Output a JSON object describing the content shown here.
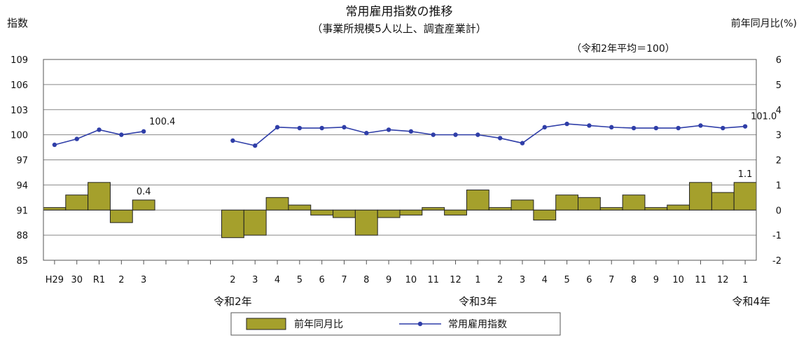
{
  "chart_data": {
    "type": "bar+line",
    "title": "常用雇用指数の推移",
    "subtitle": "（事業所規模5人以上、調査産業計）",
    "base_note": "（令和2年平均＝100）",
    "left_axis_label": "指数",
    "right_axis_label": "前年同月比(%)",
    "left_ylim": [
      85,
      109
    ],
    "left_ticks": [
      "109",
      "106",
      "103",
      "100",
      "97",
      "94",
      "91",
      "88",
      "85"
    ],
    "right_ylim": [
      -2,
      6
    ],
    "right_ticks": [
      "6",
      "5",
      "4",
      "3",
      "2",
      "1",
      "0",
      "-1",
      "-2"
    ],
    "categories": [
      "H29",
      "30",
      "R1",
      "2",
      "3",
      "",
      "",
      "",
      "2",
      "3",
      "4",
      "5",
      "6",
      "7",
      "8",
      "9",
      "10",
      "11",
      "12",
      "1",
      "2",
      "3",
      "4",
      "5",
      "6",
      "7",
      "8",
      "9",
      "10",
      "11",
      "12",
      "1"
    ],
    "era_labels": [
      {
        "text": "令和2年",
        "index": 8
      },
      {
        "text": "令和3年",
        "index": 19
      },
      {
        "text": "令和4年",
        "index": 31
      }
    ],
    "series": [
      {
        "name": "前年同月比",
        "kind": "bar",
        "color": "#a5a02c",
        "values": [
          0.1,
          0.6,
          1.1,
          -0.5,
          0.4,
          null,
          null,
          null,
          -1.1,
          -1.0,
          0.5,
          0.2,
          -0.2,
          -0.3,
          -1.0,
          -0.3,
          -0.2,
          0.1,
          -0.2,
          0.8,
          0.1,
          0.4,
          -0.4,
          0.6,
          0.5,
          0.1,
          0.6,
          0.1,
          0.2,
          1.1,
          0.7,
          1.1
        ]
      },
      {
        "name": "常用雇用指数",
        "kind": "line",
        "color": "#2f3ea8",
        "values": [
          98.8,
          99.5,
          100.6,
          100.0,
          100.4,
          null,
          null,
          null,
          99.3,
          98.7,
          100.9,
          100.8,
          100.8,
          100.9,
          100.2,
          100.6,
          100.4,
          100.0,
          100.0,
          100.0,
          99.6,
          99.0,
          100.9,
          101.3,
          101.1,
          100.9,
          100.8,
          100.8,
          100.8,
          101.1,
          100.8,
          101.0
        ]
      }
    ],
    "data_labels": [
      {
        "series": "常用雇用指数",
        "index": 4,
        "text": "100.4"
      },
      {
        "series": "前年同月比",
        "index": 4,
        "text": "0.4"
      },
      {
        "series": "常用雇用指数",
        "index": 31,
        "text": "101.0"
      },
      {
        "series": "前年同月比",
        "index": 31,
        "text": "1.1"
      }
    ],
    "legend_position": "bottom",
    "grid": true
  }
}
